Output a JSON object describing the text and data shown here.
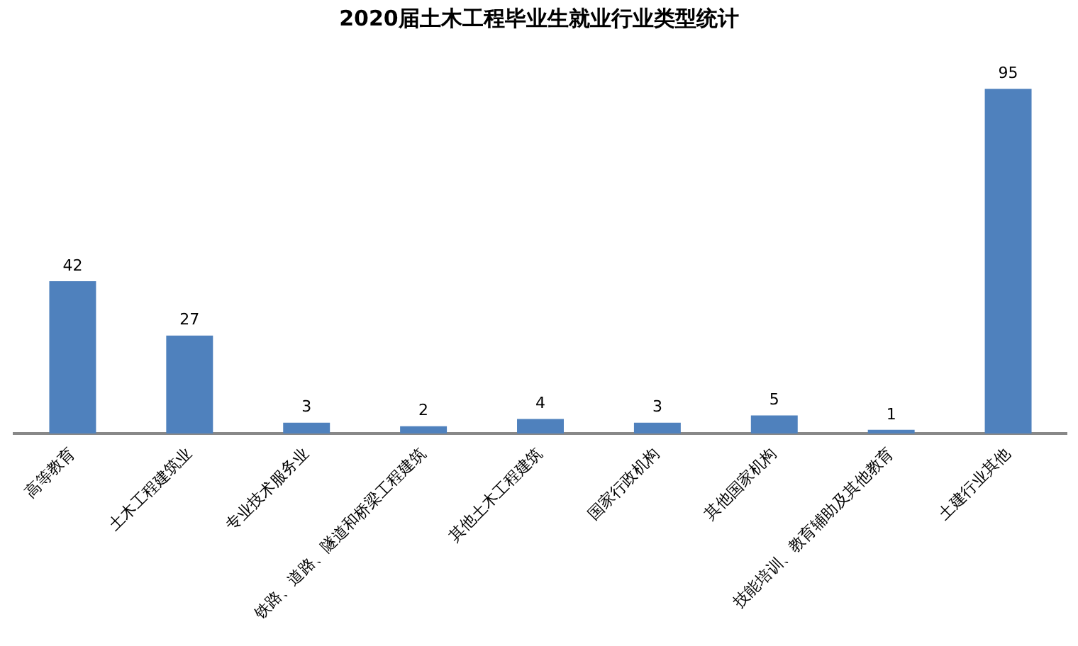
{
  "chart_data": {
    "type": "bar",
    "title": "2020届土木工程毕业生就业行业类型统计",
    "categories": [
      "高等教育",
      "土木工程建筑业",
      "专业技术服务业",
      "铁路、道路、隧道和桥梁工程建筑",
      "其他土木工程建筑",
      "国家行政机构",
      "其他国家机构",
      "技能培训、教育辅助及其他教育",
      "土建行业其他"
    ],
    "values": [
      42,
      27,
      3,
      2,
      4,
      3,
      5,
      1,
      95
    ],
    "color": "#4f81bd",
    "data_labels": true,
    "grid": false,
    "legend": false
  }
}
